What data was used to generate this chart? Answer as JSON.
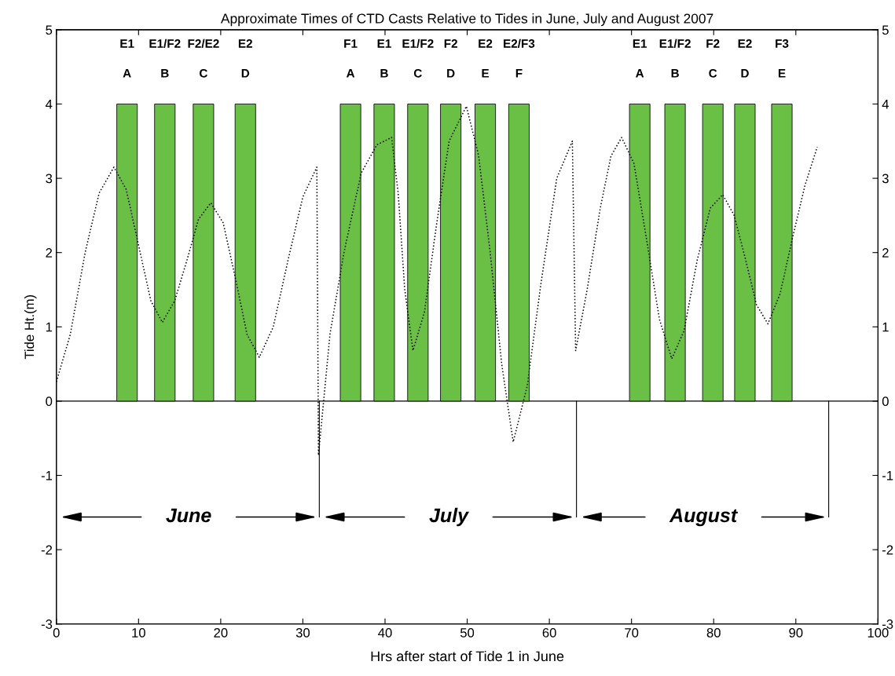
{
  "chart_data": {
    "type": "bar",
    "title": "Approximate Times of CTD Casts Relative to Tides in June, July and August 2007",
    "xlabel": "Hrs after start of Tide 1 in June",
    "ylabel": "Tide Ht.(m)",
    "series": [
      {
        "color": "#6abf45",
        "x": [
          8.6,
          13.2,
          17.9,
          23.0,
          35.8,
          39.9,
          44.0,
          48.0,
          52.2,
          56.3,
          71.0,
          75.3,
          79.9,
          83.8,
          88.3
        ],
        "values": [
          4,
          4,
          4,
          4,
          4,
          4,
          4,
          4,
          4,
          4,
          4,
          4,
          4,
          4,
          4
        ]
      },
      {
        "type": "line",
        "color": "#000000",
        "line_style": "dotted",
        "x": [
          0,
          1.7,
          3.5,
          5.2,
          7.0,
          8.5,
          10,
          11.5,
          12.9,
          14.4,
          15.9,
          17.3,
          18.8,
          20.3,
          21.8,
          23.2,
          24.7,
          26.4,
          28.2,
          30,
          31.7,
          31.9,
          33.3,
          35,
          37.1,
          39,
          40.8,
          41.6,
          42.4,
          43.4,
          44.8,
          46.3,
          47.8,
          49.9,
          51.4,
          52.8,
          54.2,
          55.6,
          57.3,
          59,
          60.9,
          62.8,
          63.2,
          64.6,
          66.2,
          67.5,
          68.8,
          70.3,
          71.8,
          73.4,
          74.9,
          76.4,
          78,
          79.6,
          81.1,
          82.5,
          83.9,
          85.2,
          86.6,
          88.1,
          89.6,
          91.1,
          92.6
        ],
        "values": [
          0.26,
          0.9,
          2.0,
          2.8,
          3.15,
          2.85,
          2.1,
          1.35,
          1.06,
          1.35,
          1.9,
          2.45,
          2.67,
          2.4,
          1.65,
          0.9,
          0.59,
          1.0,
          1.9,
          2.75,
          3.15,
          -0.73,
          0.9,
          2.0,
          3.07,
          3.45,
          3.55,
          2.8,
          1.5,
          0.68,
          1.2,
          2.4,
          3.5,
          3.97,
          3.3,
          2.0,
          0.5,
          -0.55,
          0.2,
          1.6,
          3.0,
          3.5,
          0.68,
          1.5,
          2.6,
          3.3,
          3.55,
          3.2,
          2.2,
          1.1,
          0.57,
          0.95,
          1.9,
          2.6,
          2.78,
          2.5,
          1.9,
          1.3,
          1.04,
          1.45,
          2.2,
          2.9,
          3.42
        ]
      }
    ],
    "xlim": [
      0,
      100
    ],
    "xticks": [
      0,
      10,
      20,
      30,
      40,
      50,
      60,
      70,
      80,
      90,
      100
    ],
    "ylim": [
      -3,
      5
    ],
    "yticks": [
      -3,
      -2,
      -1,
      0,
      1,
      2,
      3,
      4,
      5
    ],
    "y2lim": [
      -3,
      5
    ],
    "y2ticks": [
      -3,
      -2,
      -1,
      0,
      1,
      2,
      3,
      4,
      5
    ],
    "ref_lines": [
      {
        "axis": "y",
        "value": 0,
        "color": "#000000"
      },
      {
        "axis": "x",
        "value": 32,
        "color": "#000000"
      },
      {
        "axis": "x",
        "value": 63.3,
        "color": "#000000"
      },
      {
        "axis": "x",
        "value": 94,
        "color": "#000000"
      }
    ],
    "annotations": [
      "E1",
      "E1/F2",
      "F2/E2",
      "E2",
      "F1",
      "E1",
      "E1/F2",
      "F2",
      "E2",
      "E2/F3",
      "E1",
      "E1/F2",
      "F2",
      "E2",
      "F3",
      "A",
      "B",
      "C",
      "D",
      "A",
      "B",
      "C",
      "D",
      "E",
      "F",
      "A",
      "B",
      "C",
      "D",
      "E",
      "June",
      "July",
      "August"
    ],
    "grid": false,
    "legend": false
  }
}
